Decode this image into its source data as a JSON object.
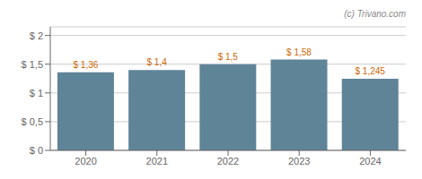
{
  "chart_data": {
    "type": "bar",
    "categories": [
      "2020",
      "2021",
      "2022",
      "2023",
      "2024"
    ],
    "values": [
      1.36,
      1.4,
      1.5,
      1.58,
      1.245
    ],
    "value_labels": [
      "$ 1,36",
      "$ 1,4",
      "$ 1,5",
      "$ 1,58",
      "$ 1,245"
    ],
    "data_labels": true,
    "color": "#5f8498",
    "ylim": [
      0,
      2.15
    ],
    "yticks": [
      {
        "value": 0,
        "label": "$ 0"
      },
      {
        "value": 0.5,
        "label": "$ 0,5"
      },
      {
        "value": 1.0,
        "label": "$ 1"
      },
      {
        "value": 1.5,
        "label": "$ 1,5"
      },
      {
        "value": 2.0,
        "label": "$ 2"
      }
    ],
    "grid": true,
    "annotations": [
      "(c) Trivano.com"
    ]
  }
}
